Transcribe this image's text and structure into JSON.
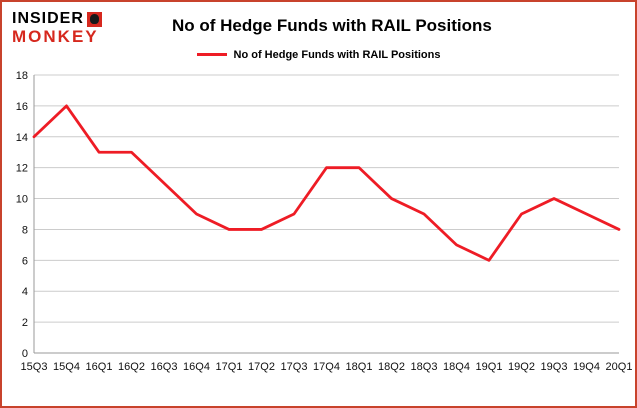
{
  "logo": {
    "line1": "INSIDER",
    "line2": "MONKEY"
  },
  "title": "No of Hedge Funds with RAIL Positions",
  "legend": {
    "label": "No of Hedge Funds with RAIL Positions"
  },
  "colors": {
    "border": "#c8432c",
    "line": "#ee1c25",
    "grid": "#cccccc",
    "axis": "#9a9a9a",
    "logo_red": "#d6281e",
    "text": "#000000"
  },
  "chart_data": {
    "type": "line",
    "title": "No of Hedge Funds with RAIL Positions",
    "categories": [
      "15Q3",
      "15Q4",
      "16Q1",
      "16Q2",
      "16Q3",
      "16Q4",
      "17Q1",
      "17Q2",
      "17Q3",
      "17Q4",
      "18Q1",
      "18Q2",
      "18Q3",
      "18Q4",
      "19Q1",
      "19Q2",
      "19Q3",
      "19Q4",
      "20Q1"
    ],
    "values": [
      14,
      16,
      13,
      13,
      11,
      9,
      8,
      8,
      9,
      12,
      12,
      10,
      9,
      7,
      6,
      9,
      10,
      9,
      8
    ],
    "xlabel": "",
    "ylabel": "",
    "ylim": [
      0,
      18
    ],
    "ytick_step": 2,
    "grid": true,
    "legend_position": "top",
    "line_color": "#ee1c25"
  }
}
